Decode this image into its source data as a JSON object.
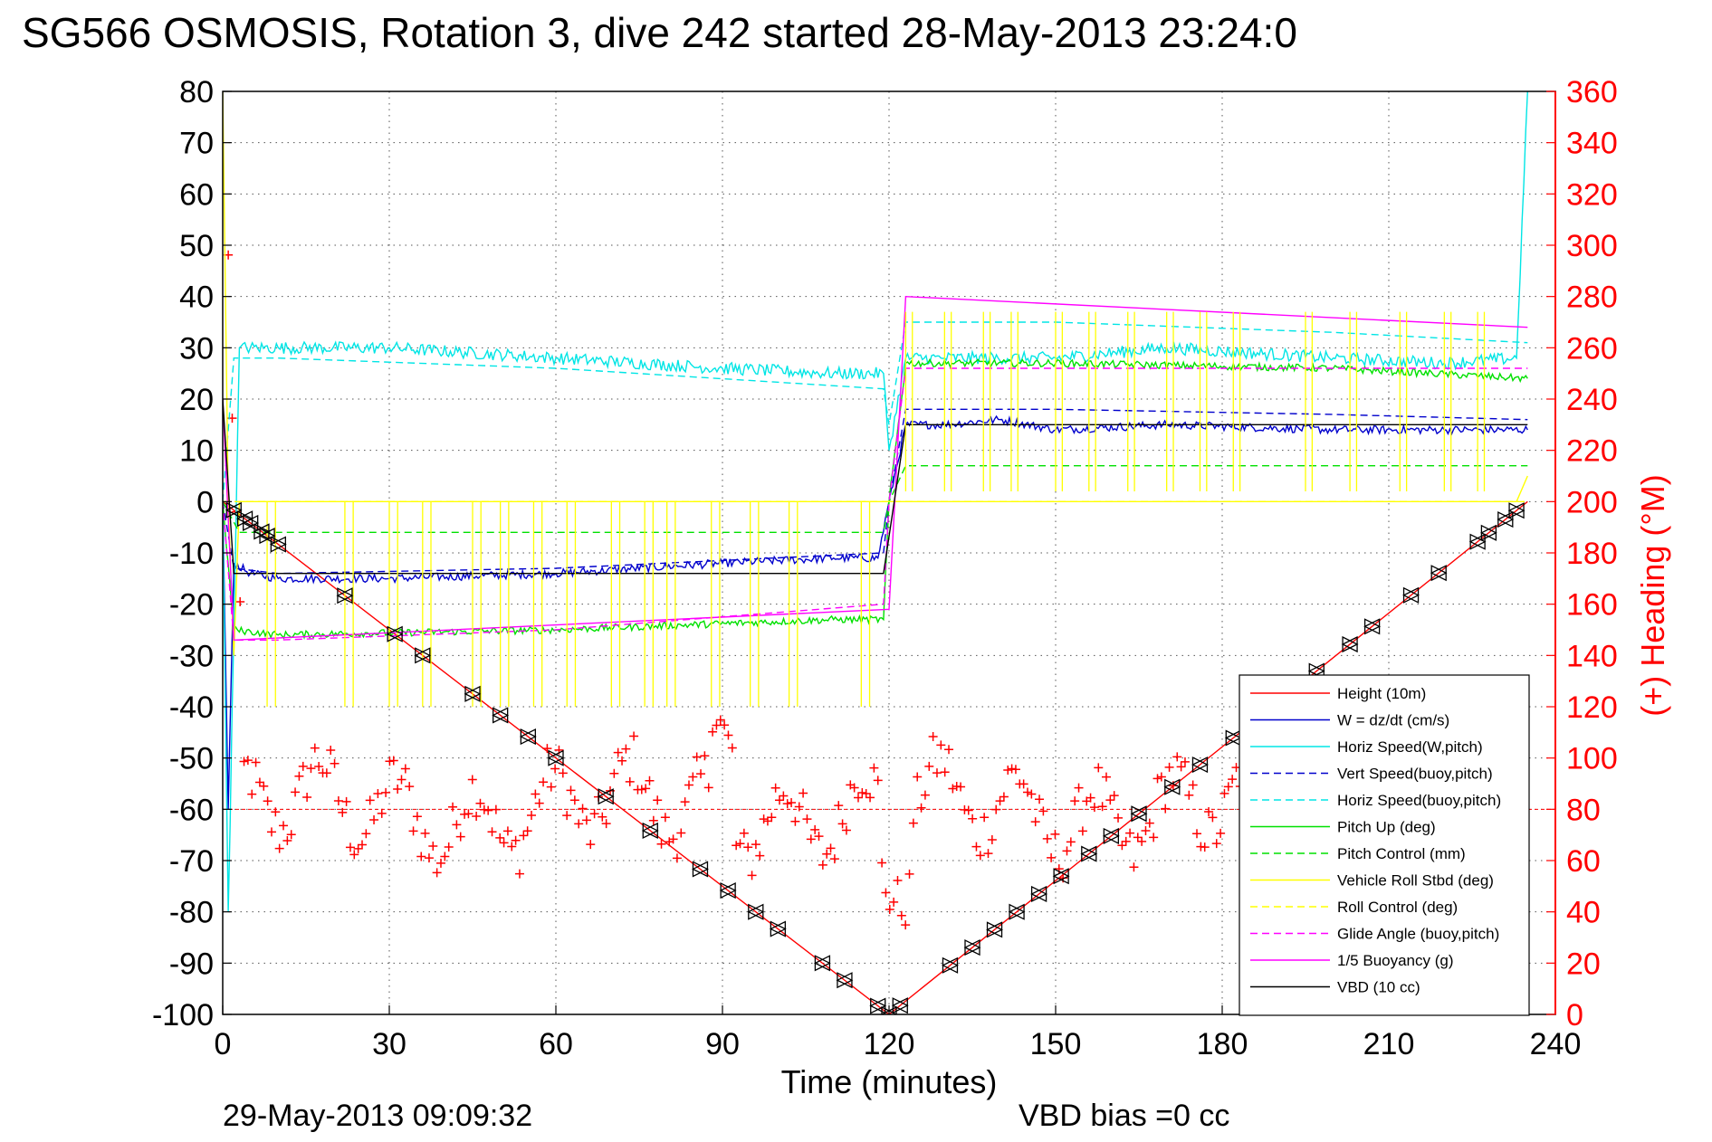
{
  "chart_data": {
    "type": "line",
    "title": "SG566 OSMOSIS, Rotation 3, dive 242 started 28-May-2013 23:24:0",
    "xlabel": "Time (minutes)",
    "ylabel_right": "(+) Heading (°M)",
    "xlim": [
      0,
      240
    ],
    "ylim": [
      -100,
      80
    ],
    "ylim_right": [
      0,
      360
    ],
    "x_ticks": [
      "0",
      "30",
      "60",
      "90",
      "120",
      "150",
      "180",
      "210",
      "240"
    ],
    "y_ticks": [
      "80",
      "70",
      "60",
      "50",
      "40",
      "30",
      "20",
      "10",
      "0",
      "-10",
      "-20",
      "-30",
      "-40",
      "-50",
      "-60",
      "-70",
      "-80",
      "-90",
      "-100"
    ],
    "y_ticks_right": [
      "360",
      "340",
      "320",
      "300",
      "280",
      "260",
      "240",
      "220",
      "200",
      "180",
      "160",
      "140",
      "120",
      "100",
      "80",
      "60",
      "40",
      "20",
      "0"
    ],
    "grid": true,
    "legend_position": "bottom-right",
    "footer_left": "29-May-2013 09:09:32",
    "footer_right": "VBD bias =0 cc",
    "colors": {
      "red": "#ff0000",
      "blue": "#0000cc",
      "cyan": "#00e5e5",
      "green": "#00e000",
      "yellow": "#ffff00",
      "magenta": "#ff00ff",
      "black": "#000000"
    },
    "series": [
      {
        "name": "Height (10m)",
        "color": "#ff0000",
        "style": "solid",
        "x": [
          0,
          120,
          235
        ],
        "y": [
          0,
          -100,
          0
        ]
      },
      {
        "name": "W = dz/dt (cm/s)",
        "color": "#0000cc",
        "style": "solid",
        "noise": 0.8,
        "x": [
          0,
          1,
          2,
          5,
          10,
          30,
          60,
          90,
          110,
          118,
          120,
          123,
          130,
          140,
          150,
          170,
          200,
          220,
          235
        ],
        "y": [
          0,
          -60,
          -12,
          -14,
          -15,
          -15,
          -14,
          -12,
          -11,
          -11,
          0,
          15,
          15,
          16,
          14,
          15,
          14,
          14,
          14
        ]
      },
      {
        "name": "Horiz Speed(W,pitch)",
        "color": "#00e5e5",
        "style": "solid",
        "noise": 1.2,
        "x": [
          0,
          1,
          3,
          10,
          30,
          60,
          90,
          110,
          119,
          120,
          123,
          130,
          150,
          170,
          200,
          220,
          233,
          235
        ],
        "y": [
          0,
          -80,
          30,
          30,
          30,
          28,
          26,
          25,
          25,
          10,
          28,
          28,
          28,
          30,
          28,
          27,
          28,
          80
        ]
      },
      {
        "name": "Vert Speed(buoy,pitch)",
        "color": "#0000cc",
        "style": "dashed",
        "x": [
          0,
          2,
          10,
          60,
          119,
          120,
          123,
          150,
          200,
          235
        ],
        "y": [
          0,
          -13,
          -14,
          -13,
          -10,
          0,
          18,
          18,
          17,
          16
        ]
      },
      {
        "name": "Horiz Speed(buoy,pitch)",
        "color": "#00e5e5",
        "style": "dashed",
        "x": [
          0,
          2,
          10,
          60,
          119,
          120,
          123,
          150,
          200,
          235
        ],
        "y": [
          0,
          28,
          28,
          26,
          22,
          15,
          35,
          35,
          33,
          31
        ]
      },
      {
        "name": "Pitch Up (deg)",
        "color": "#00e000",
        "style": "solid",
        "noise": 0.7,
        "x": [
          0,
          2,
          10,
          60,
          110,
          119,
          120,
          123,
          150,
          200,
          235
        ],
        "y": [
          0,
          -25,
          -26,
          -25,
          -23,
          -23,
          0,
          27,
          27,
          26,
          24
        ]
      },
      {
        "name": "Pitch Control (mm)",
        "color": "#00e000",
        "style": "dashed",
        "x": [
          0,
          3,
          119,
          120,
          123,
          235
        ],
        "y": [
          0,
          -6,
          -6,
          0,
          7,
          7
        ]
      },
      {
        "name": "Vehicle Roll Stbd (deg)",
        "color": "#ffff00",
        "style": "solid",
        "x": [
          0,
          1,
          2,
          3,
          5,
          20,
          60,
          100,
          119,
          120,
          123,
          150,
          200,
          233,
          235
        ],
        "y": [
          80,
          0,
          -30,
          0,
          0,
          0,
          0,
          0,
          0,
          0,
          0,
          0,
          0,
          0,
          5
        ]
      },
      {
        "name": "Roll Control (deg)",
        "color": "#ffff00",
        "style": "dashed",
        "x": [
          0,
          2,
          119,
          120,
          123,
          235
        ],
        "y": [
          0,
          0,
          0,
          0,
          0,
          0
        ]
      },
      {
        "name": "Glide Angle (buoy,pitch)",
        "color": "#ff00ff",
        "style": "dashed",
        "x": [
          0,
          2,
          10,
          60,
          119,
          120,
          123,
          150,
          200,
          235
        ],
        "y": [
          0,
          -27,
          -27,
          -25,
          -20,
          0,
          26,
          26,
          26,
          26
        ]
      },
      {
        "name": "1/5 Buoyancy (g)",
        "color": "#ff00ff",
        "style": "solid",
        "x": [
          0,
          2,
          120,
          123,
          235
        ],
        "y": [
          20,
          -27,
          -21,
          40,
          34
        ]
      },
      {
        "name": "VBD (10 cc)",
        "color": "#000000",
        "style": "solid",
        "x": [
          0,
          2,
          100,
          119,
          123,
          235
        ],
        "y": [
          20,
          -14,
          -14,
          -14,
          15,
          15
        ]
      }
    ],
    "heading_mean_deg": 80,
    "heading_axis": "right"
  }
}
